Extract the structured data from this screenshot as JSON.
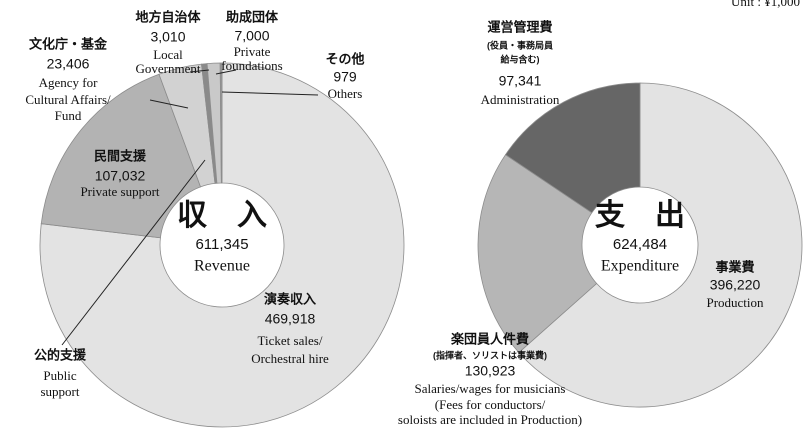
{
  "unit": "Unit : ¥1,000",
  "chart_data": [
    {
      "type": "donut",
      "center": {
        "title": "収　入",
        "value": 611345,
        "value_label": "611,345",
        "subtitle": "Revenue"
      },
      "categories": [
        "演奏収入",
        "民間支援",
        "文化庁・基金",
        "地方自治体",
        "助成団体",
        "その他"
      ],
      "values": [
        469918,
        107032,
        23406,
        3010,
        7000,
        979
      ],
      "value_labels": [
        "469,918",
        "107,032",
        "23,406",
        "3,010",
        "7,000",
        "979"
      ],
      "descriptions": [
        [
          "Ticket sales/",
          "Orchestral hire"
        ],
        [
          "Private support"
        ],
        [
          "Agency for",
          "Cultural Affairs/",
          "Fund"
        ],
        [
          "Local",
          "Government"
        ],
        [
          "Private",
          "foundations"
        ],
        [
          "Others"
        ]
      ],
      "colors": [
        "#e3e3e3",
        "#b3b3b3",
        "#d2d2d2",
        "#8a8a8a",
        "#c9c9c9",
        "#9a9a9a"
      ],
      "annotations": [
        {
          "text": "公的支援",
          "subtext": [
            "Public",
            "support"
          ]
        }
      ]
    },
    {
      "type": "donut",
      "center": {
        "title": "支　出",
        "value": 624484,
        "value_label": "624,484",
        "subtitle": "Expenditure"
      },
      "categories": [
        "事業費",
        "楽団員人件費",
        "運営管理費"
      ],
      "values": [
        396220,
        130923,
        97341
      ],
      "value_labels": [
        "396,220",
        "130,923",
        "97,341"
      ],
      "notes": [
        null,
        [
          "(指揮者、ソリストは事業費)"
        ],
        [
          "(役員・事務局員",
          "給与含む)"
        ]
      ],
      "descriptions": [
        [
          "Production"
        ],
        [
          "Salaries/wages for musicians",
          "(Fees for conductors/",
          "soloists are included in Production)"
        ],
        [
          "Administration"
        ]
      ],
      "colors": [
        "#e3e3e3",
        "#b6b6b6",
        "#666666"
      ]
    }
  ]
}
